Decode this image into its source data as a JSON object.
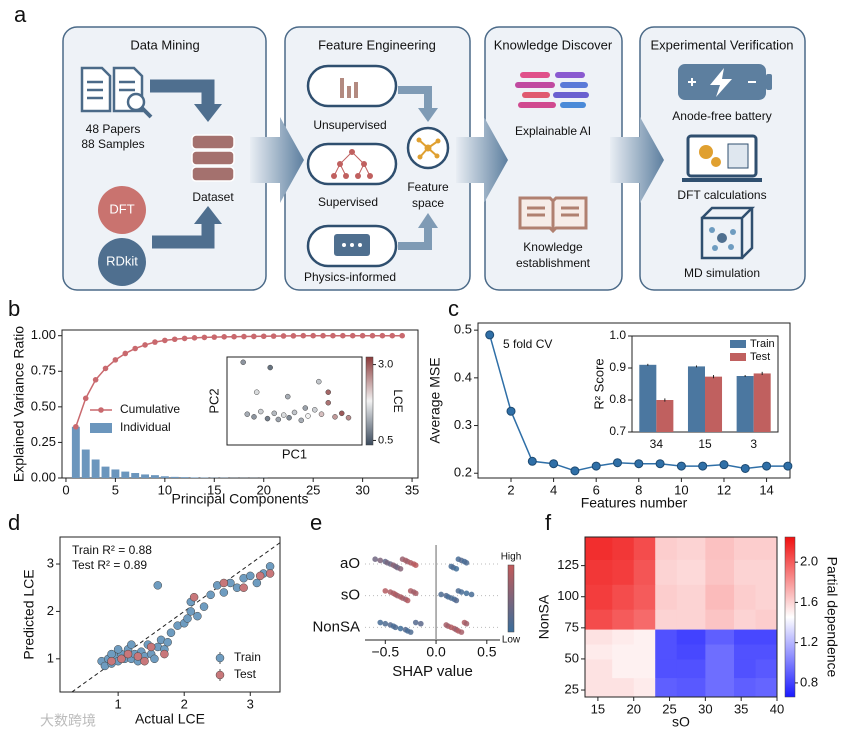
{
  "panel_labels": [
    "a",
    "b",
    "c",
    "d",
    "e",
    "f"
  ],
  "watermark": "大数跨境",
  "diagram": {
    "panels": [
      {
        "title": "Data Mining",
        "papers": "48 Papers",
        "samples": "88 Samples",
        "dataset": "Dataset",
        "dft": "DFT",
        "rdkit": "RDkit"
      },
      {
        "title": "Feature Engineering",
        "unsupervised": "Unsupervised",
        "supervised": "Supervised",
        "physics": "Physics-informed",
        "feature_space": [
          "Feature",
          "space"
        ]
      },
      {
        "title": "Knowledge Discover",
        "xai": "Explainable AI",
        "knowledge": [
          "Knowledge",
          "establishment"
        ]
      },
      {
        "title": "Experimental Verification",
        "battery": "Anode-free battery",
        "dft": "DFT calculations",
        "md": "MD simulation"
      }
    ]
  },
  "chart_data": [
    {
      "type": "combo",
      "xlabel": "Principal Components",
      "ylabel": "Explained Variance Ratio",
      "xlim": [
        -0.4,
        35.6
      ],
      "ylim": [
        0,
        1.04
      ],
      "xticks": [
        0,
        5,
        10,
        15,
        20,
        25,
        30,
        35
      ],
      "yticks": [
        {
          "value": 0,
          "label": "0.00"
        },
        {
          "value": 0.25,
          "label": "0.25"
        },
        {
          "value": 0.5,
          "label": "0.50"
        },
        {
          "value": 0.75,
          "label": "0.75"
        },
        {
          "value": 1,
          "label": "1.00"
        }
      ],
      "x": [
        1,
        2,
        3,
        4,
        5,
        6,
        7,
        8,
        9,
        10,
        11,
        12,
        13,
        14,
        15,
        16,
        17,
        18,
        19,
        20,
        21,
        22,
        23,
        24,
        25,
        26,
        27,
        28,
        29,
        30,
        31,
        32,
        33,
        34
      ],
      "legend": "center left",
      "series": [
        {
          "name": "Cumulative",
          "kind": "line",
          "color": "#c9696e",
          "values": [
            0.36,
            0.56,
            0.69,
            0.77,
            0.83,
            0.875,
            0.91,
            0.935,
            0.955,
            0.967,
            0.975,
            0.981,
            0.985,
            0.988,
            0.99,
            0.992,
            0.993,
            0.994,
            0.995,
            0.996,
            0.997,
            0.998,
            0.999,
            1,
            1,
            1,
            1,
            1,
            1,
            1,
            1,
            1,
            1,
            1
          ]
        },
        {
          "name": "Individual",
          "kind": "bar",
          "color": "#6b96bd",
          "values": [
            0.36,
            0.2,
            0.13,
            0.08,
            0.06,
            0.045,
            0.035,
            0.025,
            0.02,
            0.012,
            0.008,
            0.006,
            0.004,
            0.003,
            0.002,
            0.002,
            0.001,
            0.001,
            0.001,
            0.001,
            0,
            0,
            0,
            0,
            0,
            0,
            0,
            0,
            0,
            0,
            0,
            0,
            0,
            0
          ]
        }
      ]
    },
    {
      "type": "scatter",
      "xlabel": "PC1",
      "ylabel": "PC2",
      "xlim": [
        0,
        10
      ],
      "ylim": [
        0,
        10
      ],
      "colorbar": {
        "label": "LCE",
        "lim": [
          0.35,
          3.25
        ],
        "ticks": [
          0.5,
          {
            "value": 3,
            "label": "3.0"
          }
        ],
        "colors": [
          "#3b4a5c",
          "#f2f2f2",
          "#8b3a3a"
        ]
      },
      "series": [
        {
          "x": [
            1.5,
            2,
            2.5,
            3,
            3.5,
            3.8,
            4.2,
            4.6,
            5,
            5.5,
            6,
            6.5,
            7,
            7.5,
            8,
            8.5,
            9,
            2.2,
            3.2,
            1.2,
            4.5,
            7.5,
            6.8,
            5.8
          ],
          "values": [
            3.5,
            3.2,
            3.8,
            3,
            3.6,
            2.9,
            3.4,
            3.1,
            3.7,
            2.8,
            3.3,
            4,
            3.5,
            4.8,
            3.2,
            3.6,
            3.1,
            6,
            8.8,
            9.4,
            5.5,
            6,
            7.2,
            4.2
          ],
          "c": [
            1.2,
            1,
            1.5,
            0.8,
            1.3,
            1.1,
            1.6,
            0.9,
            1.4,
            1.2,
            1.8,
            1.5,
            2.2,
            2.8,
            2.5,
            3,
            2.6,
            1.6,
            0.7,
            1,
            1.2,
            2.9,
            1.4,
            1.1
          ]
        }
      ]
    },
    {
      "type": "line",
      "xlabel": "Features number",
      "ylabel": "Average MSE",
      "annotation": "5 fold CV",
      "xlim": [
        0.45,
        15.1
      ],
      "ylim": [
        0.19,
        0.515
      ],
      "xticks": [
        2,
        4,
        6,
        8,
        10,
        12,
        14
      ],
      "yticks": [
        0.2,
        0.3,
        0.4,
        0.5
      ],
      "x": [
        1,
        2,
        3,
        4,
        5,
        6,
        7,
        8,
        9,
        10,
        11,
        12,
        13,
        14,
        15
      ],
      "series": [
        {
          "color": "#2f6fa7",
          "values": [
            0.49,
            0.33,
            0.225,
            0.22,
            0.205,
            0.215,
            0.222,
            0.22,
            0.22,
            0.215,
            0.215,
            0.218,
            0.21,
            0.215,
            0.215
          ]
        }
      ]
    },
    {
      "type": "bar",
      "ylabel": "R² Score",
      "ylim": [
        0.7,
        1
      ],
      "yticks": [
        0.7,
        0.8,
        0.9,
        {
          "value": 1,
          "label": "1.0"
        }
      ],
      "categories": [
        "34",
        "15",
        "3"
      ],
      "legend": "upper right",
      "series": [
        {
          "name": "Train",
          "color": "#4b77a0",
          "values": [
            0.91,
            0.905,
            0.875
          ],
          "errors": [
            0.003,
            0.003,
            0.003
          ]
        },
        {
          "name": "Test",
          "color": "#c0605f",
          "values": [
            0.8,
            0.873,
            0.883
          ],
          "errors": [
            0.005,
            0.005,
            0.005
          ]
        }
      ]
    },
    {
      "type": "scatter",
      "xlabel": "Actual LCE",
      "ylabel": "Predicted LCE",
      "annotations": [
        "Train R² = 0.88",
        "Test R² = 0.89"
      ],
      "xlim": [
        0.12,
        3.45
      ],
      "ylim": [
        0.3,
        3.57
      ],
      "xticks": [
        1,
        2,
        3
      ],
      "yticks": [
        1,
        2,
        3
      ],
      "identity_line": true,
      "legend": "lower right",
      "series": [
        {
          "name": "Train",
          "color": "#6e9cc0",
          "x": [
            0.75,
            0.8,
            0.85,
            0.9,
            0.95,
            1,
            1.05,
            1.1,
            1.15,
            1.2,
            1.25,
            1.3,
            1.35,
            1.4,
            1.45,
            1.5,
            1.55,
            1.6,
            1.65,
            1.7,
            1.75,
            1.8,
            1.9,
            2,
            2.05,
            2.1,
            2.2,
            2.3,
            2.4,
            2.5,
            2.6,
            2.7,
            2.8,
            2.9,
            3,
            3.1,
            3.2,
            3.3,
            1.6,
            2.1,
            0.9,
            1,
            1.2
          ],
          "values": [
            0.95,
            0.85,
            1,
            0.9,
            1.05,
            0.95,
            1.1,
            1,
            1.2,
            1,
            1.1,
            0.95,
            1.15,
            1.05,
            1.3,
            1.1,
            1,
            1.25,
            1.4,
            1.2,
            1.35,
            1.55,
            1.7,
            1.75,
            1.85,
            2,
            1.9,
            2.1,
            2.35,
            2.55,
            2.4,
            2.6,
            2.5,
            2.7,
            2.75,
            2.6,
            2.8,
            2.95,
            2.55,
            2.2,
            1.1,
            1.2,
            1.3
          ]
        },
        {
          "name": "Test",
          "color": "#c8777a",
          "x": [
            0.9,
            1.05,
            1.15,
            1.3,
            1.5,
            1.7,
            2.15,
            2.6,
            2.9,
            3.15,
            3.3,
            1.4
          ],
          "values": [
            0.95,
            1,
            1.1,
            1.05,
            1.25,
            1.1,
            2.3,
            2.6,
            2.5,
            2.75,
            2.8,
            0.95
          ]
        }
      ]
    },
    {
      "type": "beeswarm",
      "xlabel": "SHAP value",
      "xlim": [
        -0.7,
        0.63
      ],
      "xticks": [
        {
          "value": -0.5,
          "label": "−0.5"
        },
        {
          "value": 0,
          "label": "0.0"
        },
        {
          "value": 0.5,
          "label": "0.5"
        }
      ],
      "colorbar": {
        "high": "High",
        "low": "Low",
        "colors": [
          "#3a6e9b",
          "#c25a5a"
        ]
      },
      "series": [
        {
          "name": "aO",
          "values": [
            -0.6,
            -0.55,
            -0.5,
            -0.48,
            -0.45,
            -0.42,
            -0.4,
            -0.38,
            -0.35,
            -0.33,
            -0.3,
            -0.28,
            -0.25,
            -0.22,
            -0.2,
            0.15,
            0.17,
            0.2,
            0.22,
            0.25,
            0.28,
            0.3
          ],
          "feature_values": [
            0.4,
            0.5,
            0.3,
            0.45,
            0.35,
            0.6,
            0.5,
            0.4,
            0.55,
            0.7,
            0.8,
            0.75,
            0.85,
            0.9,
            0.95,
            0.1,
            0.15,
            0.05,
            0.1,
            0.2,
            0.1,
            0.15
          ]
        },
        {
          "name": "sO",
          "values": [
            -0.5,
            -0.45,
            -0.42,
            -0.4,
            -0.38,
            -0.35,
            -0.33,
            -0.3,
            -0.28,
            -0.25,
            -0.22,
            -0.2,
            0.05,
            0.1,
            0.12,
            0.15,
            0.18,
            0.2,
            0.22,
            0.25,
            0.3,
            0.35
          ],
          "feature_values": [
            0.9,
            0.85,
            0.8,
            0.9,
            0.75,
            0.85,
            0.8,
            0.7,
            0.9,
            0.85,
            0.75,
            0.8,
            0.15,
            0.2,
            0.1,
            0.15,
            0.1,
            0.2,
            0.15,
            0.1,
            0.05,
            0.1
          ]
        },
        {
          "name": "NonSA",
          "values": [
            -0.55,
            -0.5,
            -0.45,
            -0.42,
            -0.4,
            -0.35,
            -0.3,
            -0.28,
            -0.25,
            -0.2,
            -0.15,
            0.1,
            0.12,
            0.15,
            0.18,
            0.2,
            0.22,
            0.25,
            0.28,
            0.3
          ],
          "feature_values": [
            0.1,
            0.15,
            0.2,
            0.1,
            0.15,
            0.05,
            0.2,
            0.1,
            0.15,
            0.2,
            0.25,
            0.8,
            0.75,
            0.9,
            0.85,
            0.7,
            0.9,
            0.8,
            0.85,
            0.75
          ]
        }
      ]
    },
    {
      "type": "heatmap",
      "xlabel": "sO",
      "ylabel": "NonSA",
      "xlim": [
        13.2,
        40
      ],
      "ylim": [
        19.4,
        148
      ],
      "xticks": [
        15,
        20,
        25,
        30,
        35,
        40
      ],
      "yticks": [
        25,
        50,
        75,
        100,
        125
      ],
      "x_edges": [
        13.2,
        17,
        20,
        23,
        26,
        30,
        34,
        37,
        40
      ],
      "y_edges": [
        19.4,
        35,
        50,
        62,
        74,
        90,
        110,
        130,
        148
      ],
      "values": [
        [
          1.55,
          1.55,
          1.52,
          0.9,
          0.88,
          0.95,
          0.9,
          0.92
        ],
        [
          1.55,
          1.5,
          1.5,
          0.85,
          0.85,
          0.95,
          0.85,
          0.88
        ],
        [
          1.52,
          1.5,
          1.5,
          0.85,
          0.82,
          0.95,
          0.85,
          0.85
        ],
        [
          1.55,
          1.52,
          1.5,
          0.85,
          0.8,
          0.9,
          0.82,
          0.82
        ],
        [
          2.05,
          2,
          1.95,
          1.6,
          1.6,
          1.65,
          1.6,
          1.62
        ],
        [
          2.1,
          2.05,
          2,
          1.62,
          1.6,
          1.68,
          1.62,
          1.6
        ],
        [
          2.12,
          2.1,
          2.02,
          1.6,
          1.58,
          1.65,
          1.6,
          1.6
        ],
        [
          2.15,
          2.12,
          2.05,
          1.62,
          1.6,
          1.66,
          1.62,
          1.62
        ]
      ],
      "colorbar": {
        "label": "Partial dependence",
        "lim": [
          0.66,
          2.25
        ],
        "ticks": [
          0.8,
          1.2,
          1.6,
          {
            "value": 2,
            "label": "2.0"
          }
        ],
        "colors": [
          "#1a1aff",
          "#ffffff",
          "#f01010"
        ]
      }
    }
  ]
}
